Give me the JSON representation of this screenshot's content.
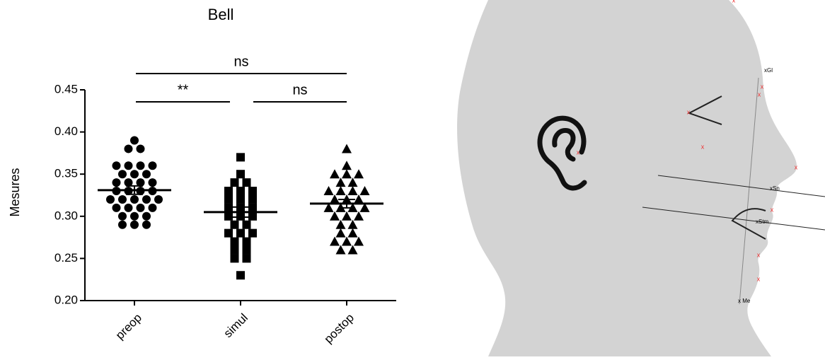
{
  "chart_data": {
    "type": "dot",
    "title": "Bell",
    "ylabel": "Mesures",
    "categories": [
      "preop",
      "simul",
      "postop"
    ],
    "markers": [
      "circle",
      "square",
      "triangle"
    ],
    "color": "#000000",
    "points": [
      [
        0.39,
        0.38,
        0.38,
        0.36,
        0.36,
        0.36,
        0.36,
        0.35,
        0.35,
        0.35,
        0.34,
        0.34,
        0.34,
        0.34,
        0.33,
        0.33,
        0.33,
        0.33,
        0.32,
        0.32,
        0.32,
        0.32,
        0.32,
        0.31,
        0.31,
        0.31,
        0.31,
        0.3,
        0.3,
        0.3,
        0.29,
        0.29,
        0.29
      ],
      [
        0.37,
        0.35,
        0.34,
        0.34,
        0.33,
        0.33,
        0.33,
        0.32,
        0.32,
        0.32,
        0.31,
        0.31,
        0.31,
        0.3,
        0.3,
        0.3,
        0.29,
        0.29,
        0.28,
        0.28,
        0.28,
        0.27,
        0.27,
        0.26,
        0.26,
        0.25,
        0.25,
        0.23
      ],
      [
        0.38,
        0.36,
        0.35,
        0.35,
        0.35,
        0.34,
        0.34,
        0.33,
        0.33,
        0.33,
        0.33,
        0.32,
        0.32,
        0.32,
        0.31,
        0.31,
        0.31,
        0.31,
        0.3,
        0.3,
        0.3,
        0.29,
        0.29,
        0.28,
        0.28,
        0.27,
        0.27,
        0.27,
        0.26,
        0.26
      ]
    ],
    "means": [
      0.331,
      0.305,
      0.315
    ],
    "sem": [
      0.005,
      0.006,
      0.005
    ],
    "annotations": [
      "ns",
      "**",
      "ns"
    ],
    "ylim": [
      0.2,
      0.45
    ],
    "yticks": [
      {
        "value": 0.2,
        "label": "0.20"
      },
      0.25,
      {
        "value": 0.3,
        "label": "0.30"
      },
      0.35,
      {
        "value": 0.4,
        "label": "0.40"
      },
      0.45
    ]
  },
  "illustration": {
    "labels": [
      "Gl",
      "Sn",
      "Stm",
      "Me"
    ]
  }
}
